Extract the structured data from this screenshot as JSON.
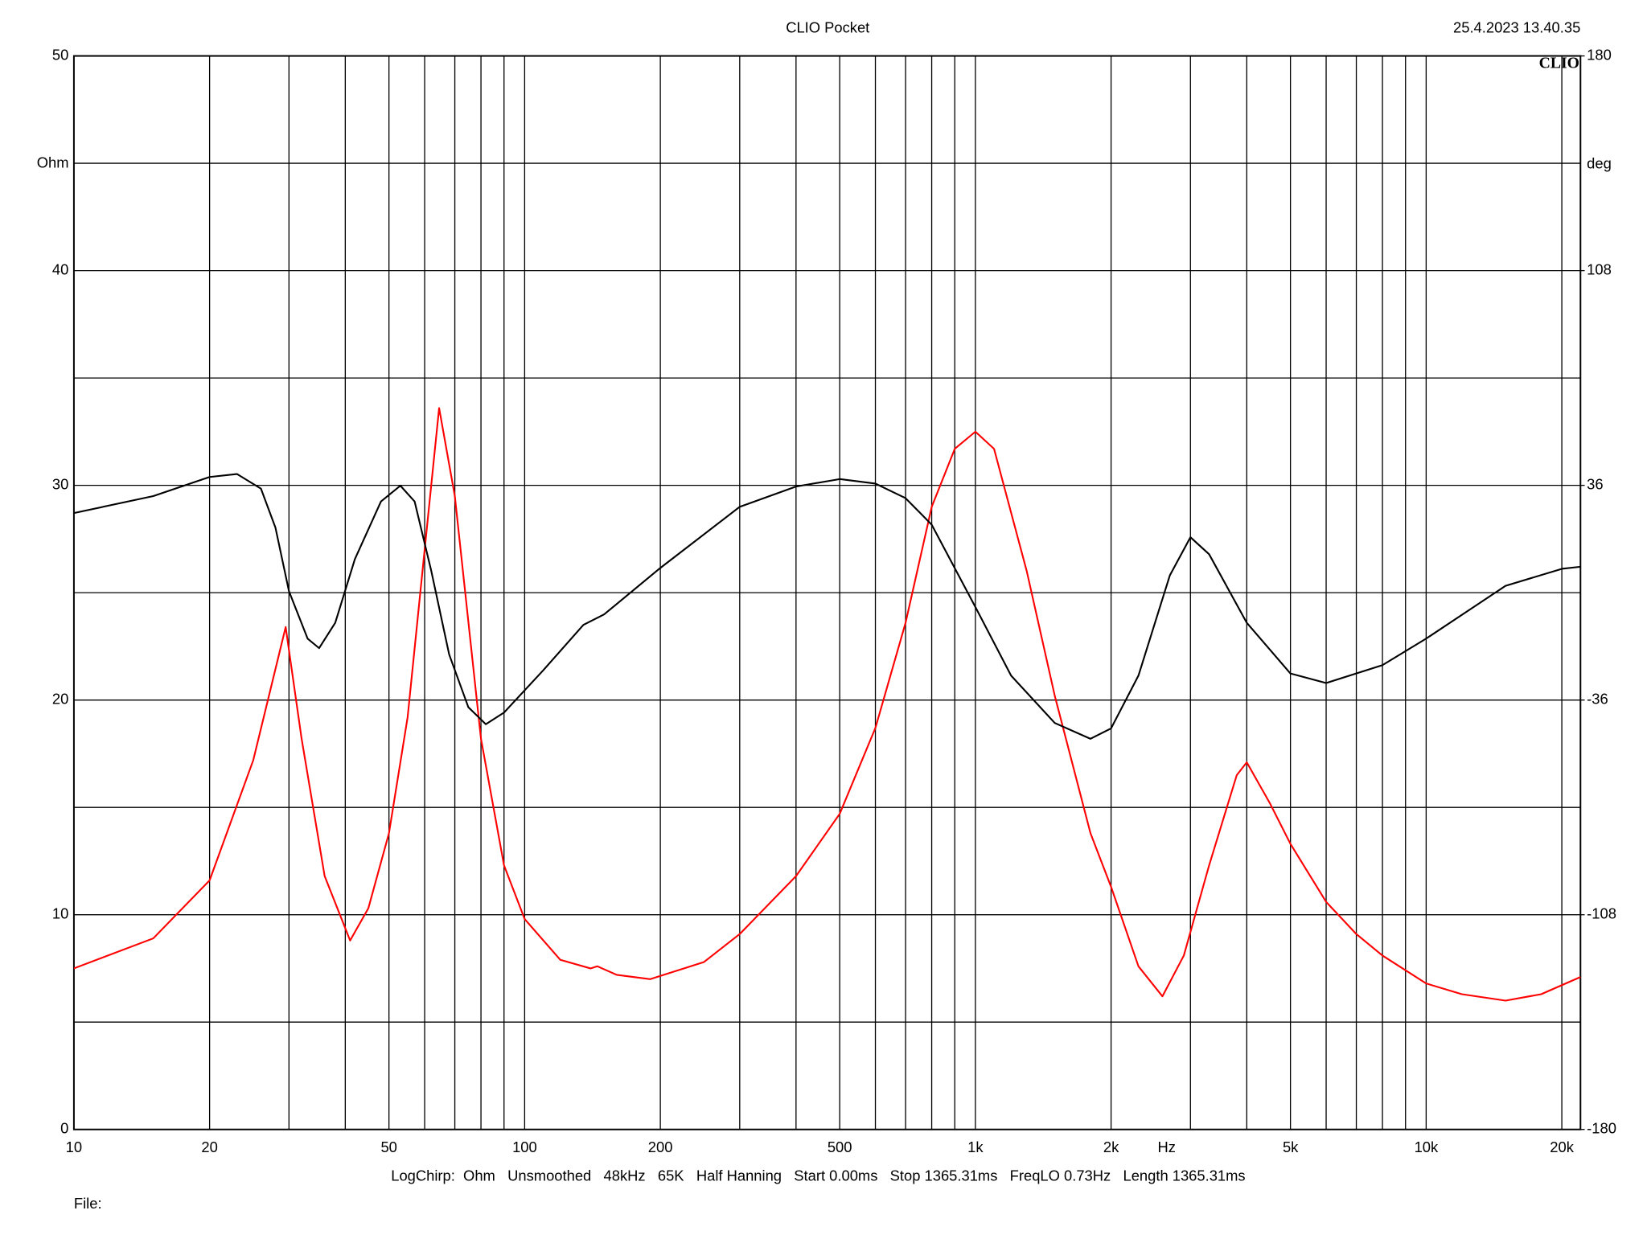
{
  "chart_data": {
    "type": "line",
    "title": "CLIO Pocket",
    "timestamp": "25.4.2023 13.40.35",
    "logo": "CLIO",
    "ylabel": "Ohm",
    "y2label": "deg",
    "xlabel": "Hz",
    "footer": "LogChirp:  Ohm   Unsmoothed   48kHz   65K   Half Hanning   Start 0.00ms   Stop 1365.31ms   FreqLO 0.73Hz   Length 1365.31ms",
    "file_label": "File:",
    "xscale": "log",
    "xlim": [
      10,
      22000
    ],
    "xticks": [
      10,
      20,
      50,
      100,
      200,
      500,
      {
        "value": 1000,
        "label": "1k"
      },
      {
        "value": 2000,
        "label": "2k"
      },
      {
        "value": 5000,
        "label": "5k"
      },
      {
        "value": 10000,
        "label": "10k"
      },
      {
        "value": 20000,
        "label": "20k"
      }
    ],
    "x_minor_gridlines": [
      30,
      40,
      60,
      70,
      80,
      90,
      300,
      400,
      600,
      700,
      800,
      900,
      3000,
      4000,
      6000,
      7000,
      8000,
      9000
    ],
    "ylim": [
      0,
      50
    ],
    "yticks": [
      0,
      10,
      20,
      30,
      40,
      50
    ],
    "y_minor_gridlines": [
      5,
      15,
      25,
      35,
      45
    ],
    "y2lim": [
      -180,
      180
    ],
    "y2ticks": [
      -180,
      -108,
      -36,
      36,
      108,
      180
    ],
    "grid": true,
    "series": [
      {
        "name": "Ohm",
        "color": "#ff0000",
        "x": [
          10,
          15,
          20,
          25,
          29.5,
          32,
          36,
          41,
          45,
          50,
          55,
          60,
          64.6,
          70,
          80,
          90,
          100,
          120,
          140,
          145,
          160,
          190,
          250,
          300,
          400,
          500,
          600,
          700,
          800,
          900,
          1000,
          1100,
          1300,
          1500,
          1800,
          2000,
          2300,
          2600,
          2900,
          3300,
          3800,
          4000,
          4500,
          5000,
          6000,
          7000,
          8000,
          10000,
          12000,
          15000,
          18000,
          22000
        ],
        "values": [
          7.5,
          8.9,
          11.6,
          17.2,
          23.4,
          18.2,
          11.8,
          8.8,
          10.3,
          13.8,
          19.2,
          27,
          33.6,
          29.5,
          18.2,
          12.3,
          9.8,
          7.9,
          7.5,
          7.6,
          7.2,
          7.0,
          7.8,
          9.1,
          11.8,
          14.7,
          18.7,
          23.6,
          29,
          31.7,
          32.5,
          31.7,
          26,
          20.2,
          13.8,
          11.3,
          7.6,
          6.2,
          8.1,
          12.3,
          16.5,
          17.1,
          15.2,
          13.3,
          10.6,
          9.1,
          8.1,
          6.8,
          6.3,
          6.0,
          6.3,
          7.1
        ]
      },
      {
        "name": "deg",
        "color": "#000000",
        "axis": "y2",
        "x": [
          10,
          15,
          20,
          23,
          26,
          28,
          30,
          33,
          35,
          38,
          42,
          48,
          53,
          57,
          62,
          68,
          75,
          82,
          90,
          110,
          135,
          150,
          200,
          300,
          400,
          500,
          600,
          700,
          800,
          1000,
          1200,
          1500,
          1800,
          2000,
          2300,
          2700,
          3000,
          3300,
          4000,
          5000,
          6000,
          8000,
          10000,
          15000,
          20000,
          22000
        ],
        "values": [
          26.7,
          32.4,
          38.8,
          39.8,
          34.9,
          21.8,
          0.5,
          -15.4,
          -18.6,
          -10.1,
          11.2,
          30.6,
          35.9,
          30.6,
          7.6,
          -20.7,
          -38.4,
          -44.1,
          -40.2,
          -26,
          -10.8,
          -7.3,
          8.3,
          28.8,
          35.6,
          38.1,
          36.6,
          31.7,
          22.8,
          -4.8,
          -27.8,
          -43.7,
          -49.0,
          -45.5,
          -27.8,
          5.8,
          18.6,
          12.9,
          -10.1,
          -27.1,
          -30.3,
          -24.3,
          -15.4,
          2.3,
          8,
          8.7
        ]
      }
    ]
  }
}
